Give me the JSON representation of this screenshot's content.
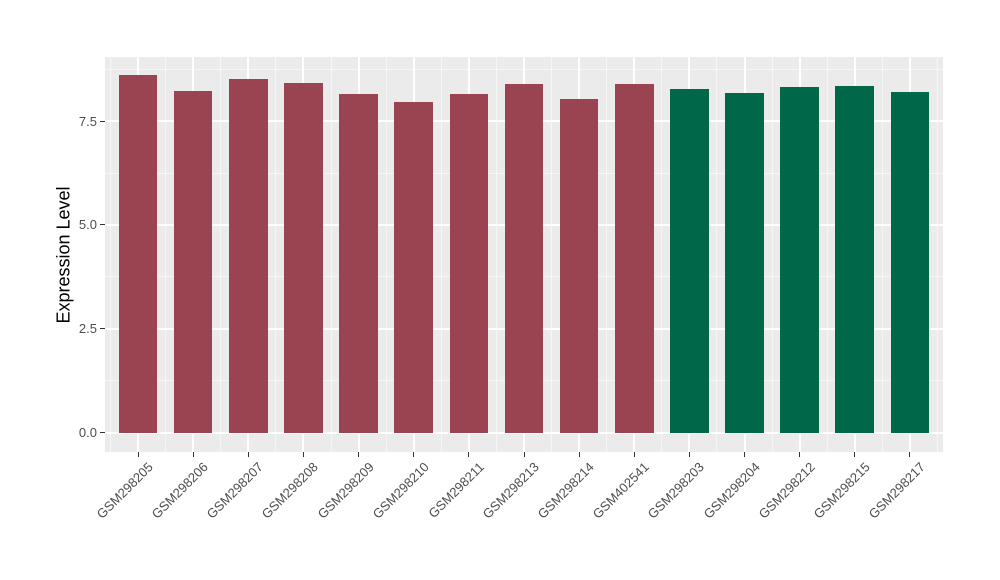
{
  "chart_data": {
    "type": "bar",
    "title": "",
    "xlabel": "",
    "ylabel": "Expression Level",
    "categories": [
      "GSM298205",
      "GSM298206",
      "GSM298207",
      "GSM298208",
      "GSM298209",
      "GSM298210",
      "GSM298211",
      "GSM298213",
      "GSM298214",
      "GSM402541",
      "GSM298203",
      "GSM298204",
      "GSM298212",
      "GSM298215",
      "GSM298217"
    ],
    "values": [
      8.61,
      8.22,
      8.51,
      8.41,
      8.16,
      7.96,
      8.15,
      8.4,
      8.03,
      8.39,
      8.26,
      8.17,
      8.33,
      8.34,
      8.19
    ],
    "bar_colors": [
      "#9A4452",
      "#9A4452",
      "#9A4452",
      "#9A4452",
      "#9A4452",
      "#9A4452",
      "#9A4452",
      "#9A4452",
      "#9A4452",
      "#9A4452",
      "#006749",
      "#006749",
      "#006749",
      "#006749",
      "#006749"
    ],
    "group_colors": {
      "group1": "#9A4452",
      "group2": "#006749"
    },
    "ytick_labels": [
      "0.0",
      "2.5",
      "5.0",
      "7.5"
    ],
    "yticks": [
      0.0,
      2.5,
      5.0,
      7.5
    ],
    "yminor": [
      1.25,
      3.75,
      6.25,
      8.75
    ],
    "ylim": [
      -0.46,
      9.04
    ],
    "grid": true,
    "legend_position": "none",
    "x_tick_rotation_deg": -45,
    "bar_rel_width": 0.7,
    "colors": {
      "panel_bg": "#EBEBEB",
      "gridline": "#FFFFFF",
      "tick_mark": "#333333",
      "axis_text": "#4D4D4D",
      "axis_title": "#000000",
      "figure_bg": "#FFFFFF"
    }
  }
}
